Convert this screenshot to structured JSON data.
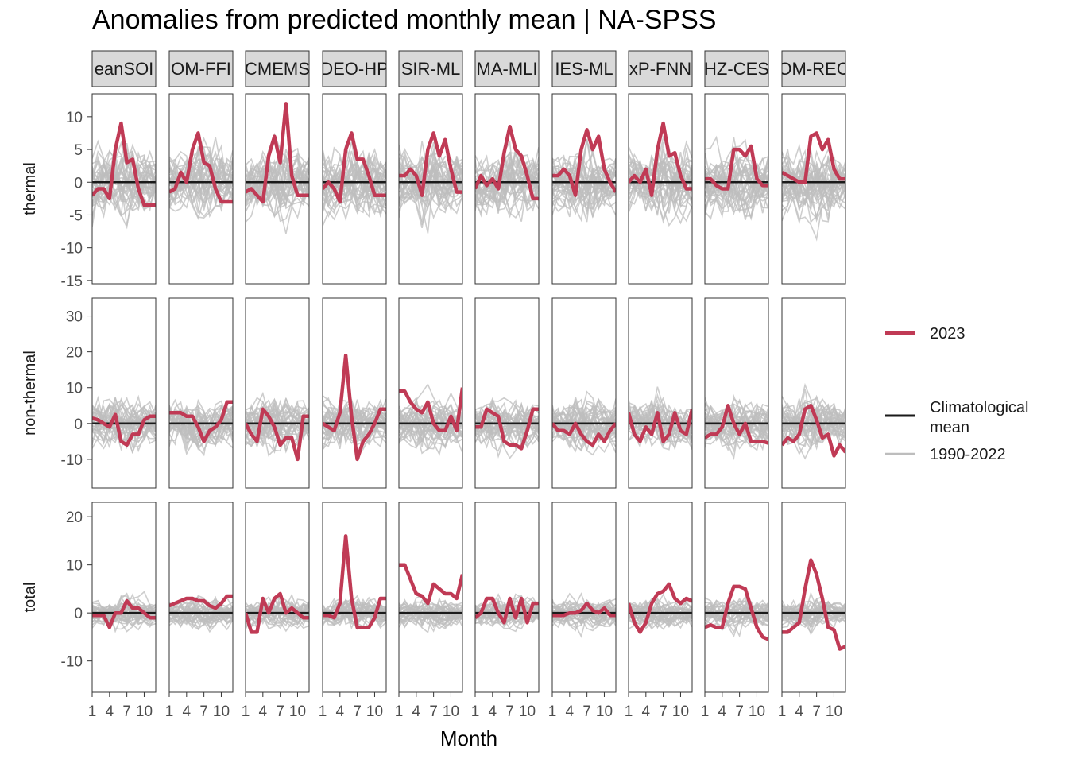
{
  "colors": {
    "highlight": "#C03A55",
    "climatological": "#1a1a1a",
    "history": "#bdbdbd",
    "strip_fill": "#d9d9d9",
    "tick_text": "#4d4d4d"
  },
  "chart_data": {
    "type": "line",
    "title": "Anomalies from predicted monthly mean | NA-SPSS",
    "xlabel": "Month",
    "ylabel": "",
    "x": [
      1,
      2,
      3,
      4,
      5,
      6,
      7,
      8,
      9,
      10,
      11,
      12
    ],
    "x_ticks": [
      1,
      4,
      7,
      10
    ],
    "facet_columns": [
      "eanSOI",
      "OM-FFI",
      "CMEMS",
      "DEO-HP",
      "SIR-ML",
      "MA-MLI",
      "IES-ML",
      "xP-FNN",
      "HZ-CES",
      "OM-REC"
    ],
    "facet_rows": [
      {
        "label": "thermal",
        "ylim": [
          -15.5,
          13.5
        ],
        "yticks": [
          10,
          5,
          0,
          -5,
          -10,
          -15
        ]
      },
      {
        "label": "non-thermal",
        "ylim": [
          -18,
          35
        ],
        "yticks": [
          30,
          20,
          10,
          0,
          -10
        ]
      },
      {
        "label": "total",
        "ylim": [
          -16.5,
          23
        ],
        "yticks": [
          20,
          10,
          0,
          -10
        ]
      }
    ],
    "legend": {
      "position": "right",
      "items": [
        {
          "label": "2023",
          "style": "highlight"
        },
        {
          "label": "Climatological mean",
          "style": "climatological"
        },
        {
          "label": "1990-2022",
          "style": "history"
        }
      ]
    },
    "series_2023": {
      "thermal": [
        [
          -2,
          -1,
          -1,
          -2.5,
          5,
          9,
          3,
          3.5,
          -1,
          -3.5,
          -3.5,
          -3.5
        ],
        [
          -1.5,
          -1,
          1.5,
          0,
          5,
          7.5,
          3,
          2.5,
          -1,
          -3,
          -3,
          -3
        ],
        [
          -1.5,
          -1,
          -2,
          -3,
          4,
          7,
          3,
          12,
          1,
          -2,
          -2,
          -2
        ],
        [
          -1,
          0,
          -1,
          -3,
          5,
          7.5,
          3.5,
          3.5,
          1,
          -2,
          -2,
          -2
        ],
        [
          1,
          1,
          2,
          1,
          -2,
          5,
          7.5,
          4,
          6.5,
          2,
          -1.5,
          -1.5
        ],
        [
          -1,
          1,
          -0.5,
          0.5,
          -1,
          4.5,
          8.5,
          5,
          4,
          1,
          -2.5,
          -2.5
        ],
        [
          1,
          1,
          2,
          1,
          -2,
          5,
          8,
          5,
          7,
          2,
          0,
          -1.5
        ],
        [
          0,
          1,
          0,
          2,
          -2,
          5,
          9,
          4,
          4.5,
          1,
          -1,
          -1
        ],
        [
          0.5,
          0.5,
          -0.5,
          -1,
          -1,
          5,
          5,
          4,
          5.5,
          0.5,
          -0.5,
          -0.5
        ],
        [
          1.5,
          1,
          0.5,
          0,
          0,
          7,
          7.5,
          5,
          6.5,
          2,
          0.5,
          0.5
        ]
      ],
      "non-thermal": [
        [
          1.5,
          1,
          0,
          -1,
          2.5,
          -5,
          -6,
          -3,
          -3,
          1,
          2,
          2
        ],
        [
          3,
          3,
          3,
          2,
          2,
          -1,
          -5,
          -2,
          -1,
          1,
          6,
          6
        ],
        [
          0,
          -3,
          -5,
          4,
          2,
          -1,
          -6,
          -4,
          -4,
          -10,
          2,
          2
        ],
        [
          0,
          -1,
          -2,
          3,
          19,
          2,
          -10,
          -5,
          -3,
          0,
          4,
          4
        ],
        [
          9,
          9,
          6,
          4,
          3,
          6,
          0,
          -2,
          -2,
          2,
          -2,
          10
        ],
        [
          -1,
          -1,
          4,
          3,
          2,
          -5,
          -6,
          -6,
          -7,
          -2,
          4,
          4
        ],
        [
          0,
          -2,
          -2,
          -3,
          0,
          -3,
          -5,
          -6,
          -3,
          -5,
          -2,
          0
        ],
        [
          3,
          -3,
          -5,
          -1,
          -3,
          3,
          -5,
          -3,
          3,
          -2,
          -3,
          4
        ],
        [
          -4,
          -3,
          -3,
          -1,
          5,
          0,
          -3,
          0,
          -5,
          -5,
          -5,
          -5.5
        ],
        [
          -6,
          -4,
          -5,
          -3,
          4,
          5,
          1,
          -4,
          -3,
          -9,
          -6,
          -8
        ]
      ],
      "total": [
        [
          -0.5,
          -0.5,
          -0.5,
          -3,
          0,
          0,
          2.5,
          1,
          1,
          0,
          -1,
          -1
        ],
        [
          1.5,
          2,
          2.5,
          3,
          3,
          2.5,
          2.5,
          1.5,
          1,
          2,
          3.5,
          3.5
        ],
        [
          0,
          -4,
          -4,
          3,
          0,
          3,
          4,
          0,
          1,
          0,
          -1,
          -1
        ],
        [
          -0.5,
          -0.5,
          -1,
          2,
          16,
          3,
          -3,
          -3,
          -3,
          -1,
          3,
          3
        ],
        [
          10,
          10,
          7,
          4,
          3.5,
          2,
          6,
          5,
          4,
          4,
          3,
          8
        ],
        [
          -1,
          0,
          3,
          3,
          0,
          -2,
          3,
          -1,
          3,
          -2,
          2,
          2
        ],
        [
          -0.5,
          -0.5,
          -0.5,
          0,
          0,
          0.5,
          2,
          0.5,
          0,
          1,
          -0.5,
          -0.5
        ],
        [
          2,
          -2,
          -4,
          -2,
          2,
          4,
          4.5,
          6,
          3,
          2,
          3,
          2.5
        ],
        [
          -3,
          -2.5,
          -3,
          -3,
          2,
          5.5,
          5.5,
          5,
          1,
          -3,
          -5,
          -5.5
        ],
        [
          -4,
          -4,
          -3,
          -2,
          5,
          11,
          8,
          3,
          -3,
          -3.5,
          -7.5,
          -7
        ]
      ]
    }
  }
}
